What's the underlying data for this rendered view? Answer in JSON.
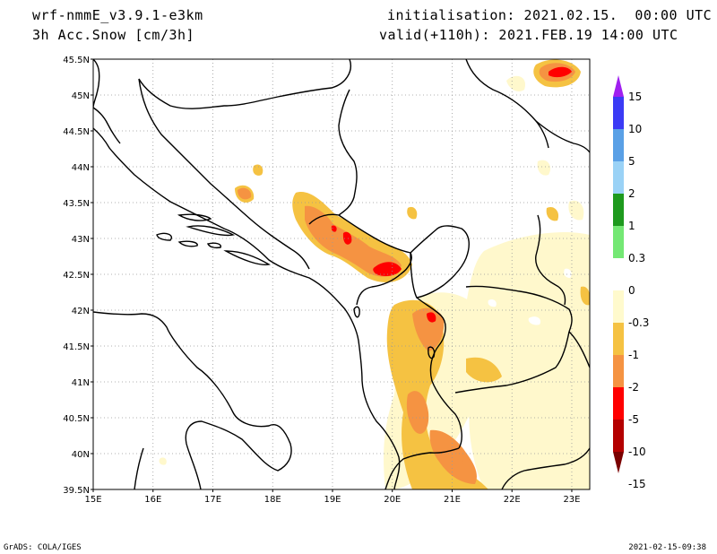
{
  "header": {
    "model": "wrf-nmmE_v3.9.1-e3km",
    "field": "3h Acc.Snow [cm/3h]",
    "init": "initialisation: 2021.02.15.  00:00 UTC",
    "valid": "valid(+110h): 2021.FEB.19 14:00 UTC"
  },
  "axes": {
    "lat_labels": [
      "45.5N",
      "45N",
      "44.5N",
      "44N",
      "43.5N",
      "43N",
      "42.5N",
      "42N",
      "41.5N",
      "41N",
      "40.5N",
      "40N",
      "39.5N"
    ],
    "lat_values": [
      45.5,
      45,
      44.5,
      44,
      43.5,
      43,
      42.5,
      42,
      41.5,
      41,
      40.5,
      40,
      39.5
    ],
    "lon_labels": [
      "15E",
      "16E",
      "17E",
      "18E",
      "19E",
      "20E",
      "21E",
      "22E",
      "23E"
    ],
    "lon_values": [
      15,
      16,
      17,
      18,
      19,
      20,
      21,
      22,
      23
    ],
    "lat_range": [
      39.5,
      45.5
    ],
    "lon_range": [
      15,
      23.3
    ],
    "grid": true
  },
  "colorbar": {
    "labels": [
      "15",
      "10",
      "5",
      "2",
      "1",
      "0.3",
      "0",
      "-0.3",
      "-1",
      "-2",
      "-5",
      "-10",
      "-15"
    ],
    "colors": [
      "#a020f0",
      "#3b3bf5",
      "#5aa0e6",
      "#9ad2f6",
      "#1e9a1e",
      "#74e874",
      "#ffffff",
      "#fffacd",
      "#f5c242",
      "#f59342",
      "#ff0000",
      "#b40000",
      "#7a0000"
    ]
  },
  "snow_colors": {
    "light": "#fff8cc",
    "mid": "#f5c242",
    "orange": "#f59342",
    "red": "#ff0000"
  },
  "footer": {
    "left": "GrADS: COLA/IGES",
    "right": "2021-02-15-09:38"
  }
}
